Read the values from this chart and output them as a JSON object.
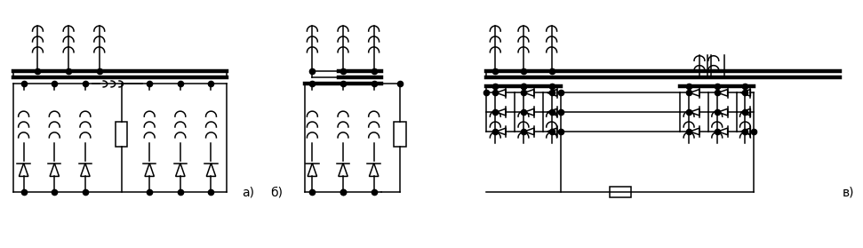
{
  "fig_width": 9.71,
  "fig_height": 2.79,
  "dpi": 100,
  "bg": "#ffffff",
  "lw": 1.1,
  "lw_thick": 3.2,
  "ds": 4.5,
  "label_a": "а)",
  "label_b": "б)",
  "label_c": "в)",
  "fs": 10
}
